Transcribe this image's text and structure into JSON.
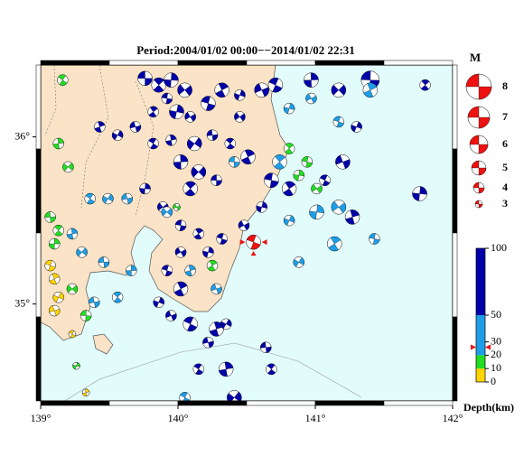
{
  "map": {
    "title": "Period:2004/01/02 00:00−−2014/01/02 22:31",
    "xlim": [
      139,
      142
    ],
    "ylim": [
      34.42,
      36.43
    ],
    "xticks": [
      {
        "value": 139,
        "label": "139°"
      },
      {
        "value": 140,
        "label": "140°"
      },
      {
        "value": 141,
        "label": "141°"
      },
      {
        "value": 142,
        "label": "142°"
      }
    ],
    "yticks": [
      {
        "value": 35,
        "label": "35°"
      },
      {
        "value": 36,
        "label": "36°"
      }
    ],
    "land_color": "#fae3c6",
    "sea_color": "#e2fcfc",
    "depth_colors": [
      {
        "from": 0,
        "to": 10,
        "color": "#ffd400"
      },
      {
        "from": 10,
        "to": 20,
        "color": "#22dd22"
      },
      {
        "from": 20,
        "to": 50,
        "color": "#1e9ee6"
      },
      {
        "from": 50,
        "to": 100,
        "color": "#0000aa"
      }
    ],
    "events": [
      [
        139.76,
        36.35,
        70,
        5
      ],
      [
        139.86,
        36.31,
        70,
        5
      ],
      [
        139.95,
        36.34,
        70,
        5
      ],
      [
        140.05,
        36.28,
        70,
        5
      ],
      [
        139.92,
        36.23,
        70,
        4
      ],
      [
        139.82,
        36.15,
        70,
        4
      ],
      [
        139.99,
        36.15,
        70,
        5
      ],
      [
        140.09,
        36.12,
        70,
        4
      ],
      [
        140.22,
        36.2,
        70,
        5
      ],
      [
        140.32,
        36.28,
        70,
        5
      ],
      [
        140.45,
        36.25,
        70,
        4
      ],
      [
        140.61,
        36.28,
        70,
        5
      ],
      [
        140.71,
        36.31,
        70,
        5
      ],
      [
        139.43,
        36.06,
        70,
        4
      ],
      [
        139.56,
        36.01,
        70,
        4
      ],
      [
        139.69,
        36.06,
        70,
        4
      ],
      [
        139.82,
        35.96,
        70,
        4
      ],
      [
        139.95,
        35.98,
        70,
        4
      ],
      [
        140.12,
        35.96,
        70,
        5
      ],
      [
        140.25,
        36.01,
        70,
        4
      ],
      [
        140.38,
        35.96,
        70,
        4
      ],
      [
        140.02,
        35.85,
        70,
        5
      ],
      [
        140.15,
        35.79,
        70,
        5
      ],
      [
        140.28,
        35.74,
        70,
        4
      ],
      [
        140.09,
        35.69,
        70,
        5
      ],
      [
        139.76,
        35.69,
        70,
        4
      ],
      [
        139.89,
        35.58,
        70,
        4
      ],
      [
        140.02,
        35.47,
        70,
        4
      ],
      [
        140.15,
        35.42,
        70,
        4
      ],
      [
        140.22,
        35.31,
        70,
        4
      ],
      [
        140.02,
        35.31,
        70,
        4
      ],
      [
        139.92,
        35.2,
        70,
        4
      ],
      [
        140.02,
        35.09,
        70,
        5
      ],
      [
        139.86,
        35.01,
        70,
        4
      ],
      [
        139.95,
        34.93,
        70,
        4
      ],
      [
        140.09,
        34.88,
        70,
        5
      ],
      [
        140.28,
        34.85,
        70,
        5
      ],
      [
        140.35,
        34.88,
        70,
        4
      ],
      [
        140.22,
        34.77,
        70,
        4
      ],
      [
        140.15,
        34.61,
        70,
        4
      ],
      [
        140.35,
        34.61,
        70,
        5
      ],
      [
        140.41,
        34.44,
        70,
        5
      ],
      [
        140.64,
        34.74,
        70,
        4
      ],
      [
        140.68,
        34.61,
        70,
        4
      ],
      [
        140.97,
        36.34,
        70,
        5
      ],
      [
        141.17,
        36.28,
        70,
        5
      ],
      [
        141.4,
        36.34,
        70,
        6
      ],
      [
        141.8,
        36.31,
        70,
        4
      ],
      [
        141.76,
        35.66,
        70,
        5
      ],
      [
        140.45,
        36.12,
        70,
        4
      ],
      [
        140.68,
        35.74,
        70,
        5
      ],
      [
        140.81,
        35.69,
        70,
        5
      ],
      [
        140.61,
        35.58,
        70,
        4
      ],
      [
        140.48,
        35.47,
        70,
        4
      ],
      [
        140.32,
        35.39,
        70,
        4
      ],
      [
        140.51,
        35.88,
        70,
        5
      ],
      [
        141.3,
        36.06,
        70,
        4
      ],
      [
        141.2,
        35.85,
        70,
        5
      ],
      [
        141.07,
        35.74,
        70,
        4
      ],
      [
        141.27,
        35.52,
        70,
        5
      ],
      [
        139.49,
        35.63,
        40,
        4
      ],
      [
        139.63,
        35.63,
        40,
        4
      ],
      [
        139.36,
        35.63,
        40,
        4
      ],
      [
        139.23,
        35.42,
        40,
        4
      ],
      [
        139.3,
        35.31,
        40,
        4
      ],
      [
        139.46,
        35.25,
        40,
        4
      ],
      [
        139.56,
        35.04,
        40,
        4
      ],
      [
        139.66,
        35.2,
        40,
        4
      ],
      [
        139.92,
        35.55,
        40,
        4
      ],
      [
        140.41,
        35.85,
        40,
        4
      ],
      [
        140.74,
        35.85,
        40,
        5
      ],
      [
        141.01,
        35.55,
        40,
        5
      ],
      [
        141.17,
        35.58,
        40,
        5
      ],
      [
        141.43,
        35.39,
        40,
        4
      ],
      [
        141.14,
        35.36,
        40,
        5
      ],
      [
        140.81,
        36.17,
        40,
        4
      ],
      [
        140.97,
        36.23,
        40,
        4
      ],
      [
        141.17,
        36.09,
        40,
        4
      ],
      [
        141.4,
        36.28,
        40,
        5
      ],
      [
        140.81,
        35.5,
        40,
        4
      ],
      [
        140.28,
        35.09,
        40,
        4
      ],
      [
        140.05,
        34.44,
        40,
        4
      ],
      [
        140.09,
        35.2,
        40,
        4
      ],
      [
        140.88,
        35.25,
        40,
        4
      ],
      [
        139.39,
        35.01,
        40,
        4
      ],
      [
        139.16,
        36.34,
        15,
        4
      ],
      [
        139.13,
        35.96,
        15,
        4
      ],
      [
        139.2,
        35.82,
        15,
        4
      ],
      [
        139.07,
        35.52,
        15,
        4
      ],
      [
        139.13,
        35.44,
        15,
        4
      ],
      [
        139.1,
        35.36,
        15,
        4
      ],
      [
        139.23,
        35.09,
        15,
        4
      ],
      [
        139.33,
        34.93,
        15,
        4
      ],
      [
        140.81,
        35.93,
        15,
        4
      ],
      [
        140.88,
        35.77,
        15,
        4
      ],
      [
        141.01,
        35.69,
        15,
        4
      ],
      [
        140.94,
        35.85,
        15,
        4
      ],
      [
        140.25,
        35.23,
        15,
        4
      ],
      [
        139.26,
        34.63,
        15,
        3
      ],
      [
        139.99,
        35.58,
        15,
        3
      ],
      [
        139.07,
        35.23,
        5,
        4
      ],
      [
        139.1,
        35.15,
        5,
        4
      ],
      [
        139.13,
        35.04,
        5,
        4
      ],
      [
        139.1,
        34.96,
        5,
        4
      ],
      [
        139.23,
        34.82,
        5,
        3
      ],
      [
        139.33,
        34.47,
        5,
        3
      ]
    ],
    "highlight": {
      "lon": 140.55,
      "lat": 35.37,
      "depth": 26,
      "mag": 5,
      "color": "#ee1111"
    },
    "magnitude_legend": {
      "title": "M",
      "values": [
        8,
        7,
        6,
        5,
        4,
        3
      ]
    },
    "depth_legend": {
      "title": "Depth(km)",
      "lim": [
        0,
        100
      ],
      "ticks": [
        100,
        50,
        30,
        20,
        10,
        0
      ]
    }
  }
}
